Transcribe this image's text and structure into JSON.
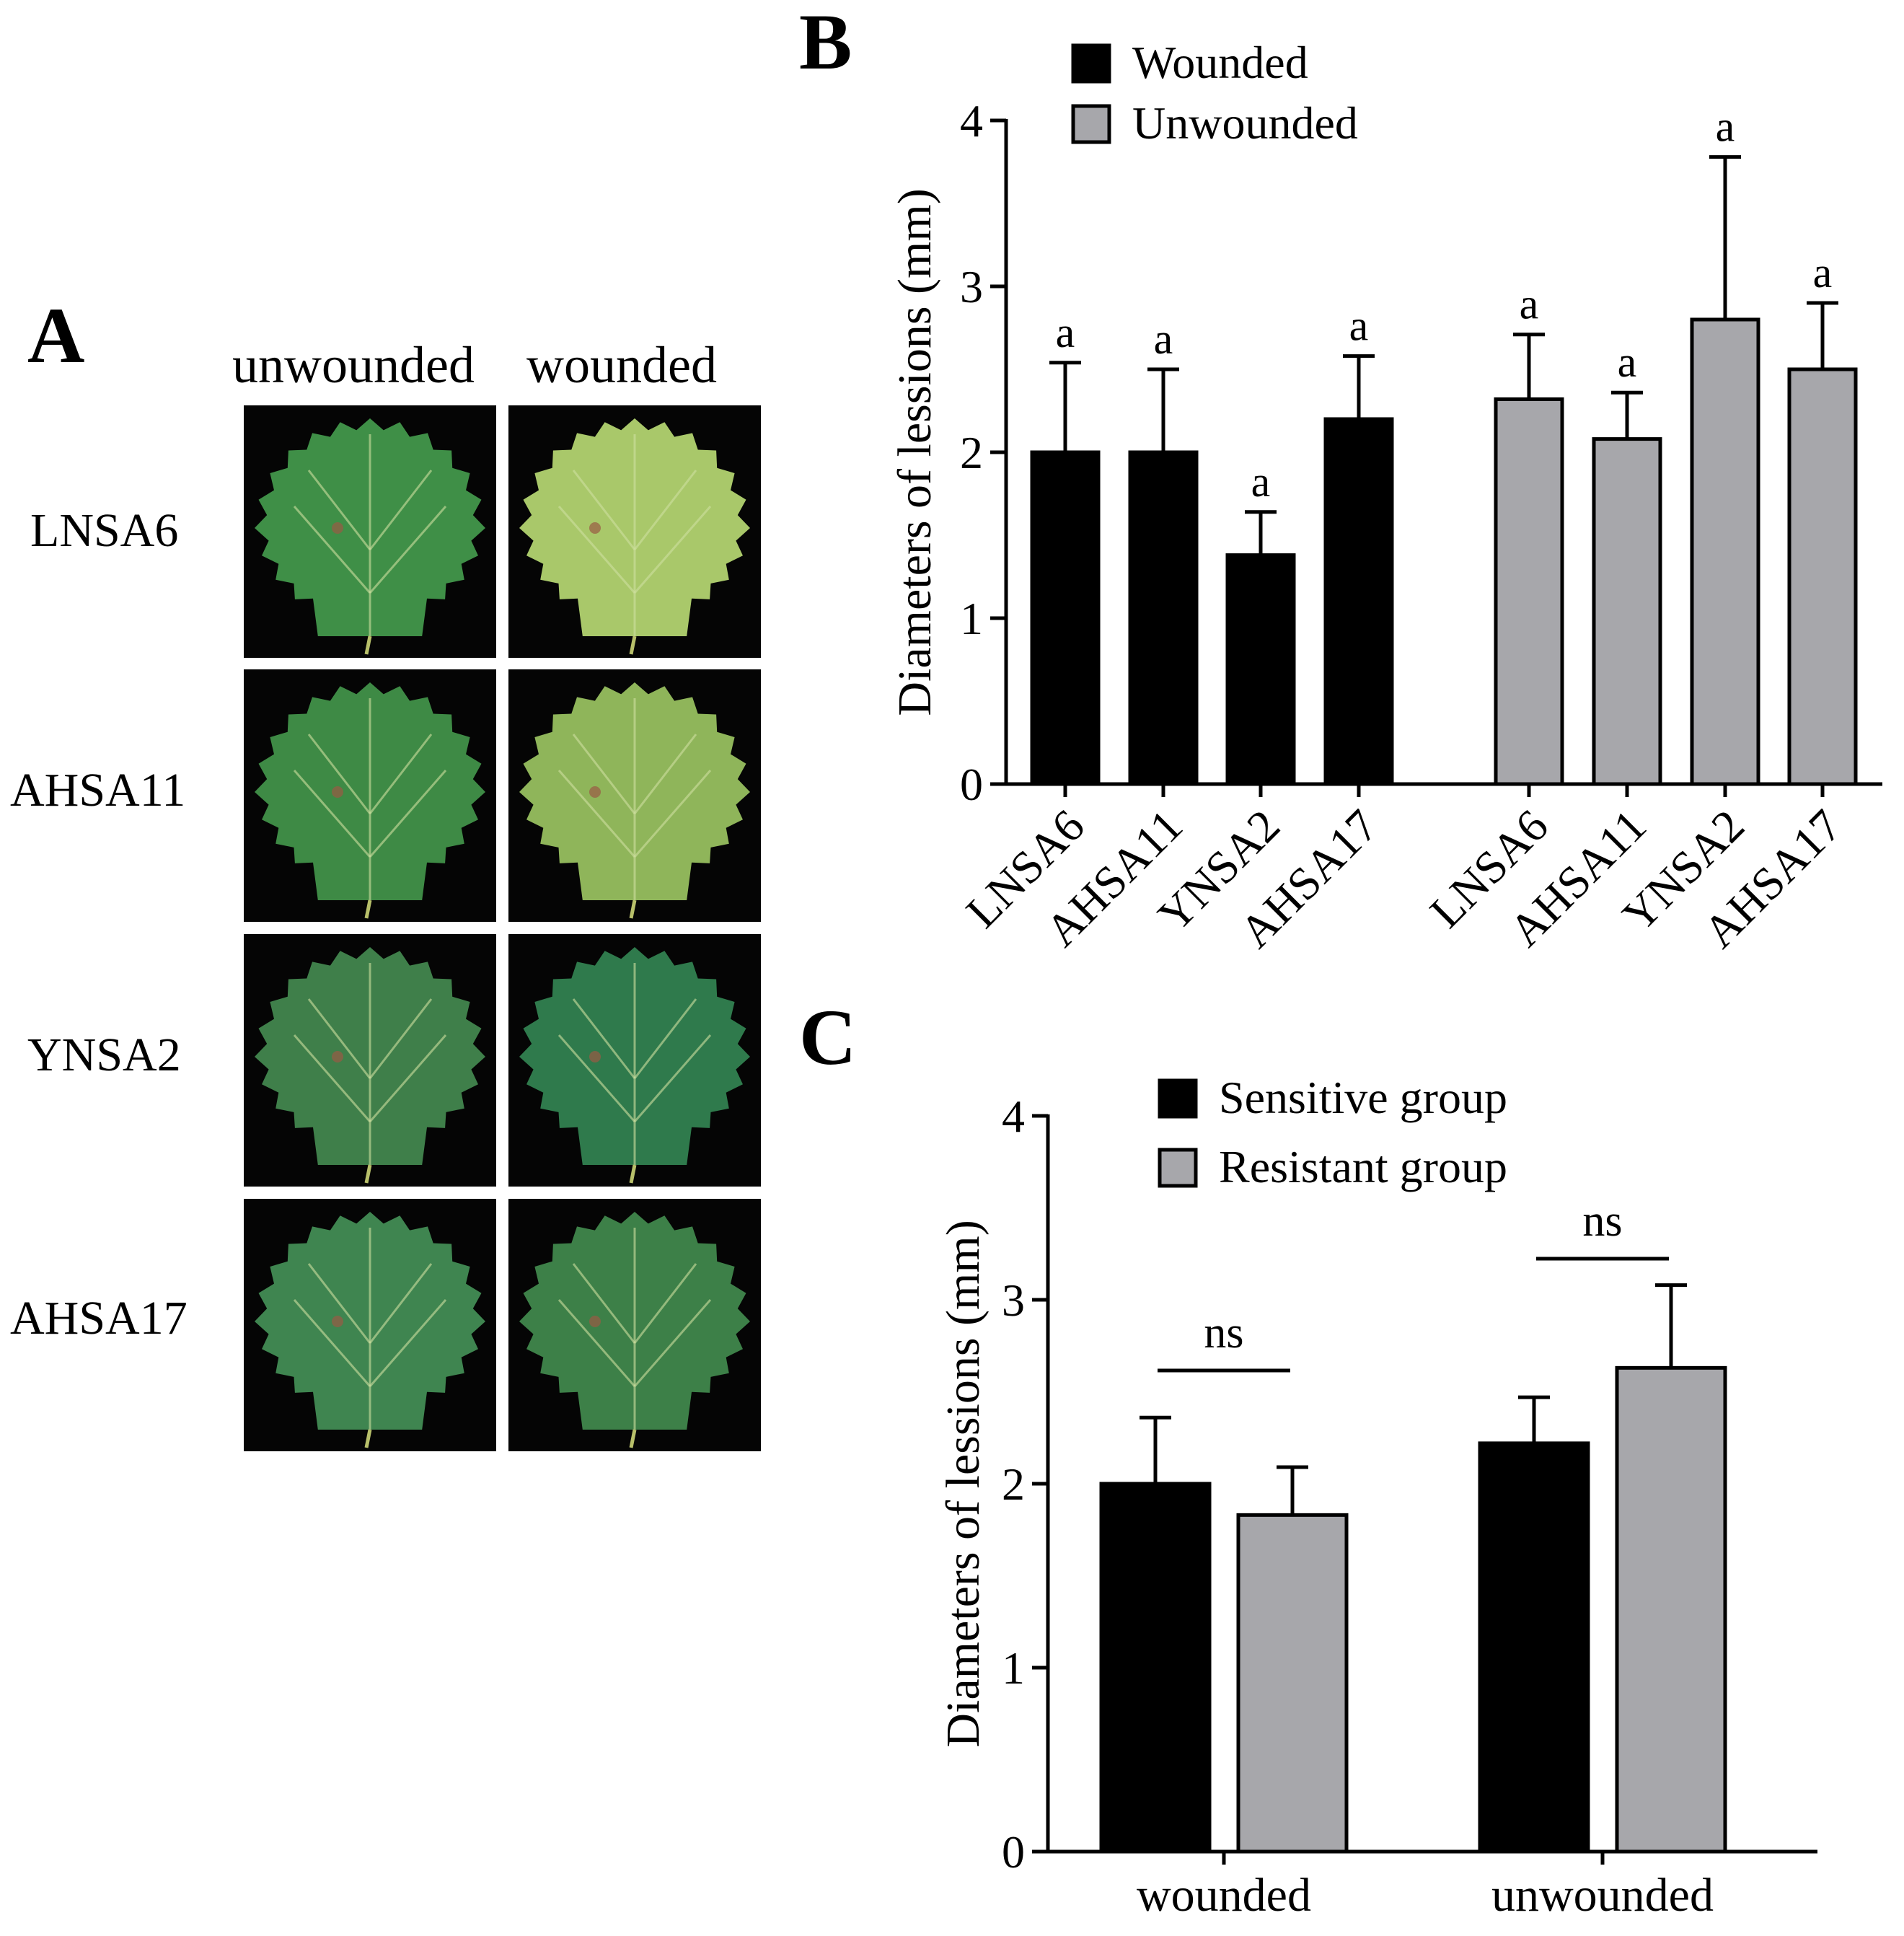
{
  "panel_a": {
    "label": "A",
    "columns": [
      "unwounded",
      "wounded"
    ],
    "rows": [
      "LNSA6",
      "AHSA11",
      "YNSA2",
      "AHSA17"
    ]
  },
  "chart_data": [
    {
      "panel": "B",
      "type": "bar",
      "ylabel": "Diameters of lessions (mm)",
      "ylim": [
        0,
        4
      ],
      "yticks": [
        "0",
        "1",
        "2",
        "3",
        "4"
      ],
      "legend_position": "top-left",
      "categories": [
        "LNSA6",
        "AHSA11",
        "YNSA2",
        "AHSA17"
      ],
      "series": [
        {
          "name": "Wounded",
          "color": "#000000",
          "values": [
            2.0,
            2.0,
            1.38,
            2.2
          ],
          "errors": [
            0.54,
            0.5,
            0.26,
            0.38
          ],
          "labels": [
            "a",
            "a",
            "a",
            "a"
          ]
        },
        {
          "name": "Unwounded",
          "color": "#a7a7ab",
          "values": [
            2.32,
            2.08,
            2.8,
            2.5
          ],
          "errors": [
            0.39,
            0.28,
            0.98,
            0.4
          ],
          "labels": [
            "a",
            "a",
            "a",
            "a"
          ]
        }
      ]
    },
    {
      "panel": "C",
      "type": "bar",
      "ylabel": "Diameters of lessions (mm)",
      "ylim": [
        0,
        4
      ],
      "yticks": [
        "0",
        "1",
        "2",
        "3",
        "4"
      ],
      "legend_position": "top",
      "categories": [
        "wounded",
        "unwounded"
      ],
      "series": [
        {
          "name": "Sensitive group",
          "color": "#000000",
          "values": [
            2.0,
            2.22
          ],
          "errors": [
            0.36,
            0.25
          ]
        },
        {
          "name": "Resistant group",
          "color": "#a7a7ab",
          "values": [
            1.83,
            2.63
          ],
          "errors": [
            0.26,
            0.45
          ]
        }
      ],
      "annotations": [
        "ns",
        "ns"
      ]
    }
  ]
}
